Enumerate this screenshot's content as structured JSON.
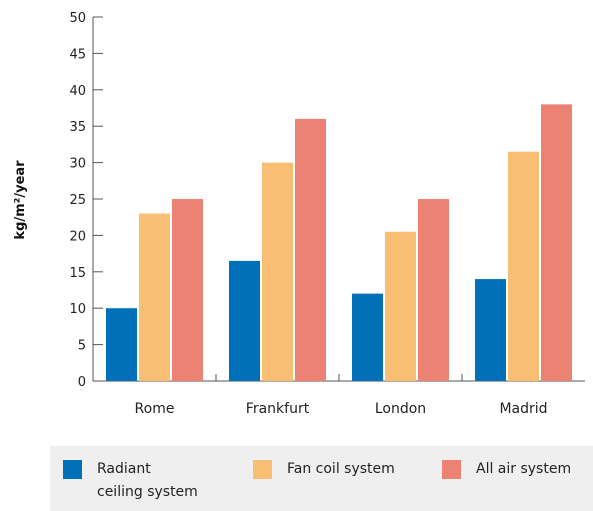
{
  "chart_data": {
    "type": "bar",
    "categories": [
      "Rome",
      "Frankfurt",
      "London",
      "Madrid"
    ],
    "series": [
      {
        "name": "Radiant\nceiling system",
        "values": [
          10,
          16.5,
          12,
          14
        ],
        "color": "#0070b8"
      },
      {
        "name": "Fan coil system",
        "values": [
          23,
          30,
          20.5,
          31.5
        ],
        "color": "#f7be74"
      },
      {
        "name": "All air system",
        "values": [
          25,
          36,
          25,
          38
        ],
        "color": "#ec8273"
      }
    ],
    "ylabel": "kg/m²/year",
    "ylim": [
      0,
      50
    ],
    "yticks": [
      0,
      5,
      10,
      15,
      20,
      25,
      30,
      35,
      40,
      45,
      50
    ],
    "grid": false,
    "legend_position": "bottom"
  }
}
